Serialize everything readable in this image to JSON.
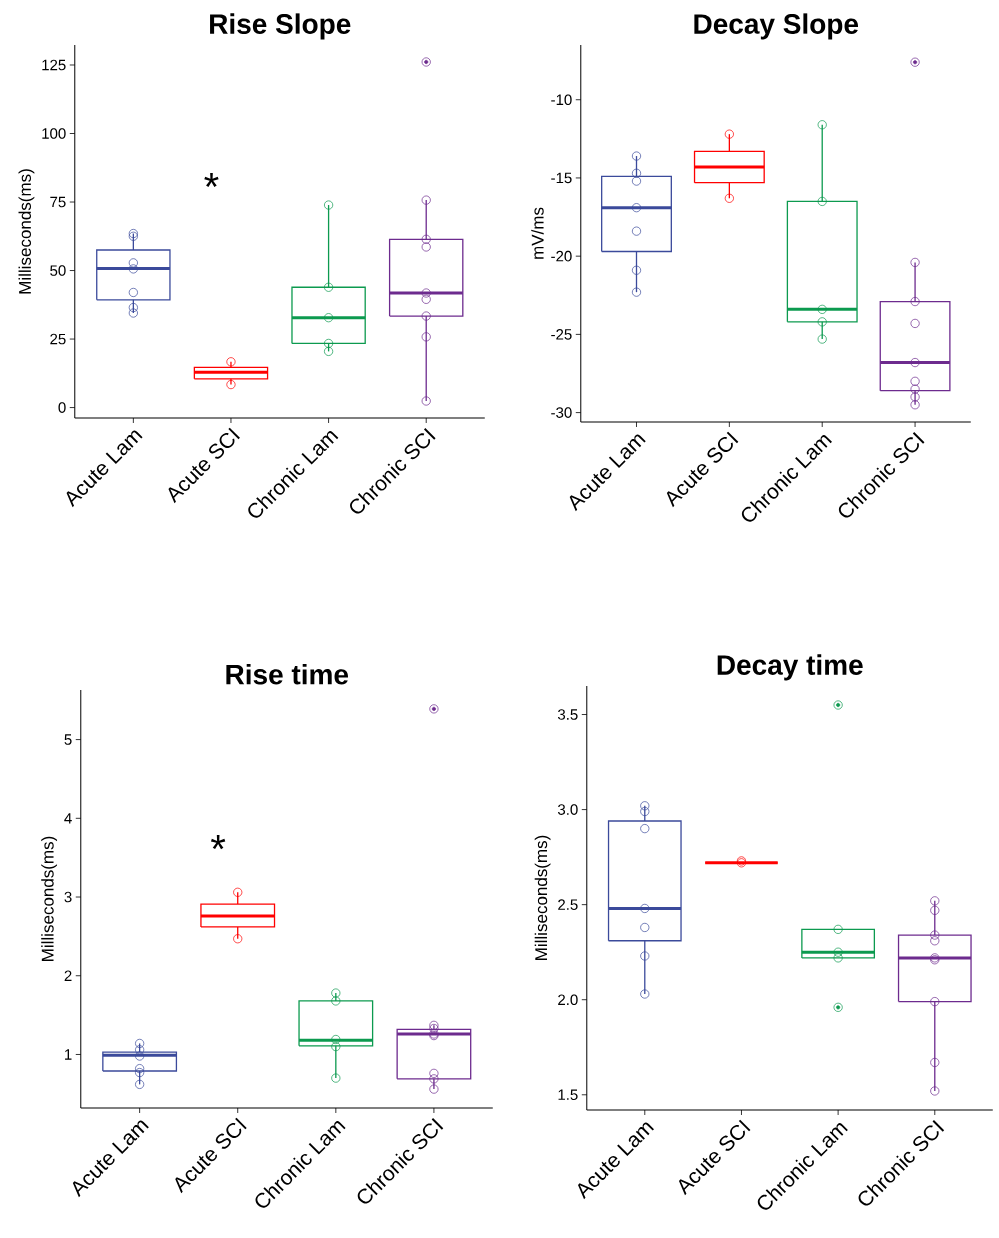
{
  "chart_data": [
    {
      "type": "box",
      "title": "Rise Slope",
      "ylabel": "Milliseconds(ms)",
      "categories": [
        "Acute Lam",
        "Acute SCI",
        "Chronic Lam",
        "Chronic SCI"
      ],
      "ylim": [
        -3.8,
        132.3
      ],
      "yticks": [
        0,
        25,
        50,
        75,
        100,
        125
      ],
      "marker": "circle",
      "annotations": [
        "*"
      ],
      "series": [
        {
          "type": "box",
          "colors": [
            "#3b4a9b",
            "#ff0000",
            "#0c9a4f",
            "#6d2b8e"
          ],
          "boxes": [
            {
              "low": 34.5,
              "q1": 39.3,
              "median": 50.7,
              "q3": 57.5,
              "high": 63.5
            },
            {
              "low": 8.4,
              "q1": 10.5,
              "median": 12.9,
              "q3": 14.7,
              "high": 16.7
            },
            {
              "low": 20.5,
              "q1": 23.4,
              "median": 32.8,
              "q3": 43.9,
              "high": 73.9
            },
            {
              "low": 2.4,
              "q1": 33.4,
              "median": 41.8,
              "q3": 61.4,
              "high": 75.7,
              "outliers": [
                126.1
              ]
            }
          ]
        },
        {
          "type": "scatter",
          "x": [
            "Acute Lam",
            "Acute Lam",
            "Acute Lam",
            "Acute Lam",
            "Acute Lam",
            "Acute Lam",
            "Acute Lam",
            "Acute SCI",
            "Acute SCI",
            "Chronic Lam",
            "Chronic Lam",
            "Chronic Lam",
            "Chronic Lam",
            "Chronic Lam",
            "Chronic SCI",
            "Chronic SCI",
            "Chronic SCI",
            "Chronic SCI",
            "Chronic SCI",
            "Chronic SCI",
            "Chronic SCI",
            "Chronic SCI"
          ],
          "values": [
            63.5,
            62.5,
            52.8,
            50.6,
            42.0,
            36.5,
            34.5,
            16.7,
            8.4,
            73.9,
            43.9,
            32.8,
            23.4,
            20.5,
            75.7,
            61.4,
            58.6,
            41.8,
            39.5,
            33.4,
            25.8,
            2.4
          ],
          "colors": [
            "#3b4a9b",
            "#3b4a9b",
            "#3b4a9b",
            "#3b4a9b",
            "#3b4a9b",
            "#3b4a9b",
            "#3b4a9b",
            "#ff0000",
            "#ff0000",
            "#0c9a4f",
            "#0c9a4f",
            "#0c9a4f",
            "#0c9a4f",
            "#0c9a4f",
            "#6d2b8e",
            "#6d2b8e",
            "#6d2b8e",
            "#6d2b8e",
            "#6d2b8e",
            "#6d2b8e",
            "#6d2b8e",
            "#6d2b8e"
          ]
        }
      ]
    },
    {
      "type": "box",
      "title": "Decay Slope",
      "ylabel": "mV/ms",
      "categories": [
        "Acute Lam",
        "Acute SCI",
        "Chronic Lam",
        "Chronic SCI"
      ],
      "ylim": [
        -30.6,
        -6.5
      ],
      "yticks": [
        -30,
        -25,
        -20,
        -15,
        -10
      ],
      "marker": "circle",
      "series": [
        {
          "type": "box",
          "colors": [
            "#3b4a9b",
            "#ff0000",
            "#0c9a4f",
            "#6d2b8e"
          ],
          "boxes": [
            {
              "low": -22.3,
              "q1": -19.7,
              "median": -16.9,
              "q3": -14.9,
              "high": -13.6
            },
            {
              "low": -16.3,
              "q1": -15.3,
              "median": -14.3,
              "q3": -13.3,
              "high": -12.2
            },
            {
              "low": -25.3,
              "q1": -24.2,
              "median": -23.4,
              "q3": -16.5,
              "high": -11.6
            },
            {
              "low": -29.5,
              "q1": -28.6,
              "median": -26.8,
              "q3": -22.9,
              "high": -20.4,
              "outliers": [
                -7.6
              ]
            }
          ]
        },
        {
          "type": "scatter",
          "x": [
            "Acute Lam",
            "Acute Lam",
            "Acute Lam",
            "Acute Lam",
            "Acute Lam",
            "Acute Lam",
            "Acute Lam",
            "Acute SCI",
            "Acute SCI",
            "Chronic Lam",
            "Chronic Lam",
            "Chronic Lam",
            "Chronic Lam",
            "Chronic Lam",
            "Chronic SCI",
            "Chronic SCI",
            "Chronic SCI",
            "Chronic SCI",
            "Chronic SCI",
            "Chronic SCI",
            "Chronic SCI",
            "Chronic SCI"
          ],
          "values": [
            -13.6,
            -14.7,
            -15.2,
            -16.9,
            -18.4,
            -20.9,
            -22.3,
            -12.2,
            -16.3,
            -11.6,
            -16.5,
            -23.4,
            -24.2,
            -25.3,
            -20.4,
            -22.9,
            -24.3,
            -26.8,
            -28.0,
            -28.5,
            -29.0,
            -29.5
          ],
          "colors": [
            "#3b4a9b",
            "#3b4a9b",
            "#3b4a9b",
            "#3b4a9b",
            "#3b4a9b",
            "#3b4a9b",
            "#3b4a9b",
            "#ff0000",
            "#ff0000",
            "#0c9a4f",
            "#0c9a4f",
            "#0c9a4f",
            "#0c9a4f",
            "#0c9a4f",
            "#6d2b8e",
            "#6d2b8e",
            "#6d2b8e",
            "#6d2b8e",
            "#6d2b8e",
            "#6d2b8e",
            "#6d2b8e",
            "#6d2b8e"
          ]
        }
      ]
    },
    {
      "type": "box",
      "title": "Rise time",
      "ylabel": "Milliseconds(ms)",
      "categories": [
        "Acute Lam",
        "Acute SCI",
        "Chronic Lam",
        "Chronic SCI"
      ],
      "ylim": [
        0.32,
        5.63
      ],
      "yticks": [
        1,
        2,
        3,
        4,
        5
      ],
      "marker": "circle",
      "annotations": [
        "*"
      ],
      "series": [
        {
          "type": "box",
          "colors": [
            "#3b4a9b",
            "#ff0000",
            "#0c9a4f",
            "#6d2b8e"
          ],
          "boxes": [
            {
              "low": 0.62,
              "q1": 0.79,
              "median": 0.99,
              "q3": 1.03,
              "high": 1.14
            },
            {
              "low": 2.47,
              "q1": 2.62,
              "median": 2.76,
              "q3": 2.91,
              "high": 3.06
            },
            {
              "low": 0.7,
              "q1": 1.11,
              "median": 1.18,
              "q3": 1.68,
              "high": 1.78
            },
            {
              "low": 0.56,
              "q1": 0.69,
              "median": 1.26,
              "q3": 1.32,
              "high": 1.37,
              "outliers": [
                5.39
              ]
            }
          ]
        },
        {
          "type": "scatter",
          "x": [
            "Acute Lam",
            "Acute Lam",
            "Acute Lam",
            "Acute Lam",
            "Acute Lam",
            "Acute Lam",
            "Acute SCI",
            "Acute SCI",
            "Chronic Lam",
            "Chronic Lam",
            "Chronic Lam",
            "Chronic Lam",
            "Chronic Lam",
            "Chronic SCI",
            "Chronic SCI",
            "Chronic SCI",
            "Chronic SCI",
            "Chronic SCI",
            "Chronic SCI",
            "Chronic SCI"
          ],
          "values": [
            1.14,
            1.06,
            0.98,
            0.82,
            0.77,
            0.62,
            3.06,
            2.47,
            1.78,
            1.68,
            1.19,
            1.1,
            0.7,
            1.37,
            1.33,
            1.26,
            1.24,
            0.76,
            0.69,
            0.56
          ],
          "colors": [
            "#3b4a9b",
            "#3b4a9b",
            "#3b4a9b",
            "#3b4a9b",
            "#3b4a9b",
            "#3b4a9b",
            "#ff0000",
            "#ff0000",
            "#0c9a4f",
            "#0c9a4f",
            "#0c9a4f",
            "#0c9a4f",
            "#0c9a4f",
            "#6d2b8e",
            "#6d2b8e",
            "#6d2b8e",
            "#6d2b8e",
            "#6d2b8e",
            "#6d2b8e",
            "#6d2b8e"
          ]
        }
      ]
    },
    {
      "type": "box",
      "title": "Decay time",
      "ylabel": "Milliseconds(ms)",
      "categories": [
        "Acute Lam",
        "Acute SCI",
        "Chronic Lam",
        "Chronic SCI"
      ],
      "ylim": [
        1.42,
        3.65
      ],
      "yticks": [
        1.5,
        {
          "value": 2,
          "label": "2.0"
        },
        2.5,
        {
          "value": 3,
          "label": "3.0"
        },
        3.5
      ],
      "marker": "circle",
      "series": [
        {
          "type": "box",
          "colors": [
            "#3b4a9b",
            "#ff0000",
            "#0c9a4f",
            "#6d2b8e"
          ],
          "boxes": [
            {
              "low": 2.03,
              "q1": 2.31,
              "median": 2.48,
              "q3": 2.94,
              "high": 3.02
            },
            {
              "low": 2.72,
              "q1": 2.72,
              "median": 2.72,
              "q3": 2.72,
              "high": 2.72
            },
            {
              "low": 2.22,
              "q1": 2.22,
              "median": 2.25,
              "q3": 2.37,
              "high": 2.37,
              "outliers": [
                3.55,
                1.96
              ]
            },
            {
              "low": 1.52,
              "q1": 1.99,
              "median": 2.22,
              "q3": 2.34,
              "high": 2.52
            }
          ]
        },
        {
          "type": "scatter",
          "x": [
            "Acute Lam",
            "Acute Lam",
            "Acute Lam",
            "Acute Lam",
            "Acute Lam",
            "Acute Lam",
            "Acute Lam",
            "Acute SCI",
            "Acute SCI",
            "Chronic Lam",
            "Chronic Lam",
            "Chronic Lam",
            "Chronic SCI",
            "Chronic SCI",
            "Chronic SCI",
            "Chronic SCI",
            "Chronic SCI",
            "Chronic SCI",
            "Chronic SCI",
            "Chronic SCI",
            "Chronic SCI"
          ],
          "values": [
            3.02,
            2.99,
            2.9,
            2.48,
            2.38,
            2.23,
            2.03,
            2.72,
            2.73,
            2.37,
            2.25,
            2.22,
            2.52,
            2.47,
            2.34,
            2.31,
            2.22,
            2.21,
            1.99,
            1.67,
            1.52
          ],
          "colors": [
            "#3b4a9b",
            "#3b4a9b",
            "#3b4a9b",
            "#3b4a9b",
            "#3b4a9b",
            "#3b4a9b",
            "#3b4a9b",
            "#ff0000",
            "#ff0000",
            "#0c9a4f",
            "#0c9a4f",
            "#0c9a4f",
            "#6d2b8e",
            "#6d2b8e",
            "#6d2b8e",
            "#6d2b8e",
            "#6d2b8e",
            "#6d2b8e",
            "#6d2b8e",
            "#6d2b8e",
            "#6d2b8e"
          ]
        }
      ]
    }
  ]
}
